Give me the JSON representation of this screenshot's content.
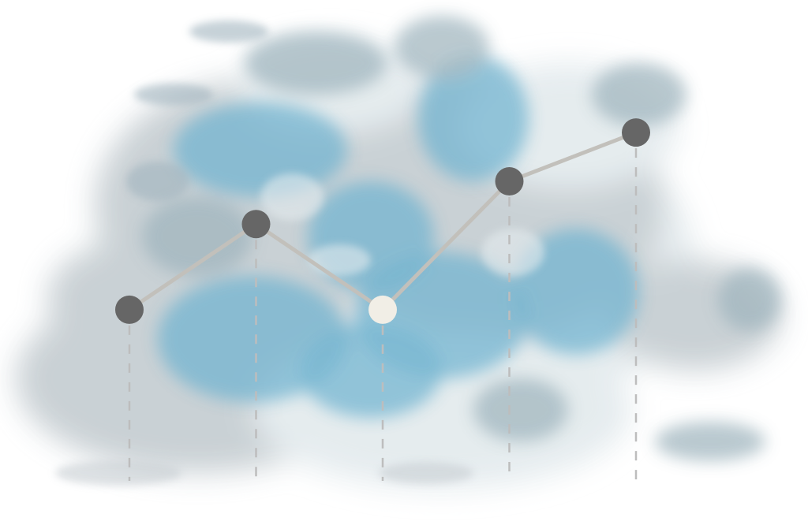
{
  "chart_data": {
    "type": "line",
    "title": "",
    "xlabel": "",
    "ylabel": "",
    "x": [
      1,
      2,
      3,
      4,
      5
    ],
    "series": [
      {
        "values": [
          2.0,
          3.0,
          2.0,
          3.5,
          4.07
        ],
        "line_color": "#c2c0bb",
        "marker_color": "#666666",
        "highlight_index": 2,
        "highlight_color": "#f1eee6"
      }
    ],
    "ylim": [
      0,
      5.25
    ],
    "grid": false,
    "drop_lines": true,
    "drop_line_color": "#bdbdbd",
    "background": "cloud-illustration",
    "cloud_colors": {
      "blue": "#6fb3cf",
      "grey_blue": "#9fb4bd",
      "grey": "#c7cfd3",
      "light": "#e4ebee"
    }
  }
}
